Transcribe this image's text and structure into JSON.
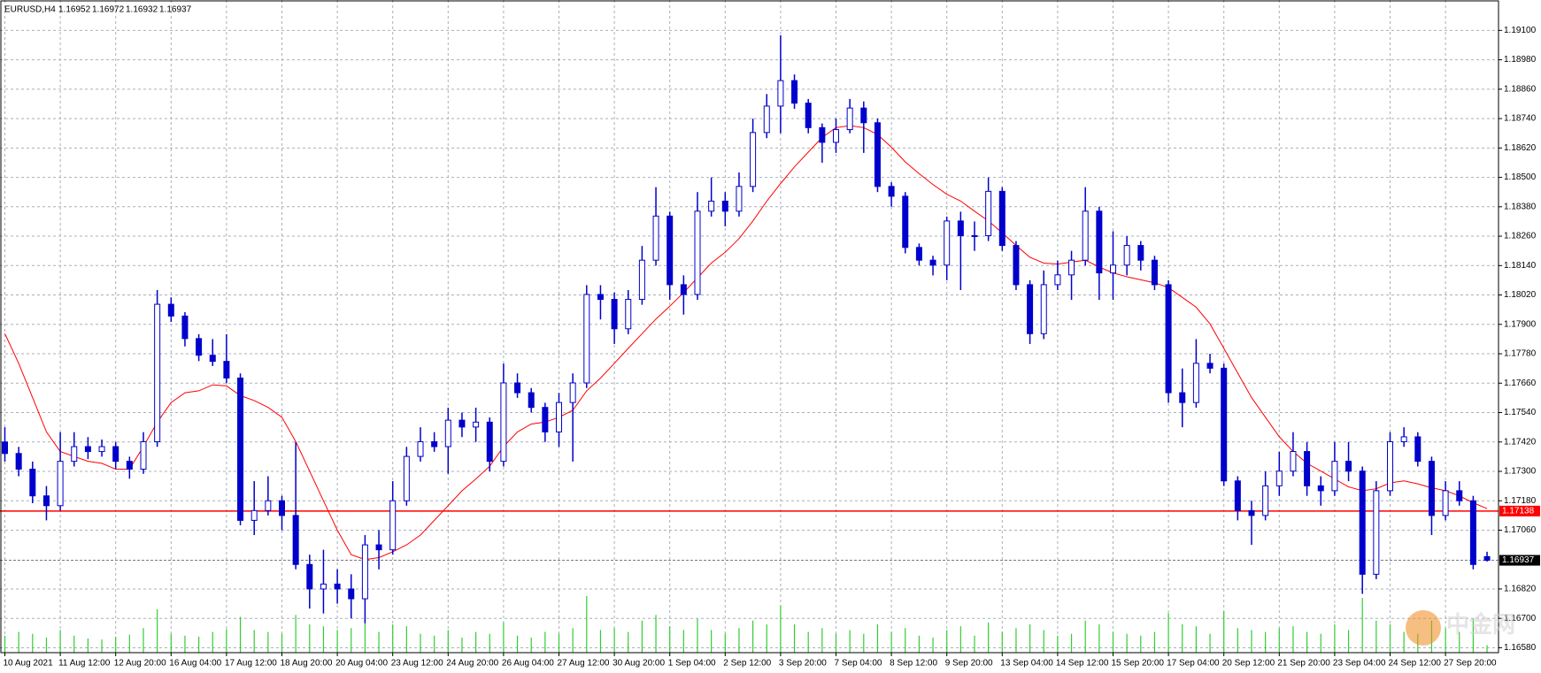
{
  "chart_data": {
    "type": "candlestick",
    "title": "EURUSD,H4",
    "candle_color": "#0000cc",
    "grid": true,
    "categories": [
      "10 Aug 2021",
      null,
      null,
      null,
      "11 Aug 12:00",
      null,
      null,
      null,
      "12 Aug 20:00",
      null,
      null,
      null,
      "16 Aug 04:00",
      null,
      null,
      null,
      "17 Aug 12:00",
      null,
      null,
      null,
      "18 Aug 20:00",
      null,
      null,
      null,
      "20 Aug 04:00",
      null,
      null,
      null,
      "23 Aug 12:00",
      null,
      null,
      null,
      "24 Aug 20:00",
      null,
      null,
      null,
      "26 Aug 04:00",
      null,
      null,
      null,
      "27 Aug 12:00",
      null,
      null,
      null,
      "30 Aug 20:00",
      null,
      null,
      null,
      "1 Sep 04:00",
      null,
      null,
      null,
      "2 Sep 12:00",
      null,
      null,
      null,
      "3 Sep 20:00",
      null,
      null,
      null,
      "7 Sep 04:00",
      null,
      null,
      null,
      "8 Sep 12:00",
      null,
      null,
      null,
      "9 Sep 20:00",
      null,
      null,
      null,
      "13 Sep 04:00",
      null,
      null,
      null,
      "14 Sep 12:00",
      null,
      null,
      null,
      "15 Sep 20:00",
      null,
      null,
      null,
      "17 Sep 04:00",
      null,
      null,
      null,
      "20 Sep 12:00",
      null,
      null,
      null,
      "21 Sep 20:00",
      null,
      null,
      null,
      "23 Sep 04:00",
      null,
      null,
      null,
      "24 Sep 12:00",
      null,
      null,
      null,
      "27 Sep 20:00",
      null,
      null,
      null
    ],
    "open": [
      1.1742,
      1.17373,
      1.17309,
      1.172,
      1.1716,
      1.17341,
      1.17401,
      1.17381,
      1.17401,
      1.17341,
      1.17309,
      1.17421,
      1.17982,
      1.17934,
      1.17842,
      1.17774,
      1.17749,
      1.17681,
      1.171,
      1.1714,
      1.1718,
      1.1712,
      1.1692,
      1.1682,
      1.1684,
      1.1682,
      1.1678,
      1.17,
      1.1698,
      1.1718,
      1.17361,
      1.17421,
      1.17401,
      1.17509,
      1.17481,
      1.17501,
      1.17341,
      1.17661,
      1.17621,
      1.17561,
      1.17461,
      1.17581,
      1.17661,
      1.18022,
      1.18002,
      1.17882,
      1.18002,
      1.18162,
      1.18342,
      1.18062,
      1.18022,
      1.18362,
      1.18403,
      1.18362,
      1.18463,
      1.18683,
      1.18791,
      1.18895,
      1.18803,
      1.18703,
      1.18643,
      1.18695,
      1.18783,
      1.18723,
      1.18463,
      1.18423,
      1.18214,
      1.18162,
      1.18142,
      1.18322,
      1.18262,
      1.18262,
      1.18443,
      1.18222,
      1.18062,
      1.17862,
      1.18062,
      1.18102,
      1.18162,
      1.18362,
      1.1811,
      1.18142,
      1.18222,
      1.18162,
      1.18062,
      1.17621,
      1.17581,
      1.17741,
      1.17721,
      1.17261,
      1.1714,
      1.1712,
      1.17241,
      1.17301,
      1.17381,
      1.17241,
      1.17221,
      1.17341,
      1.17301,
      1.1688,
      1.17221,
      1.17421,
      1.17441,
      1.17341,
      1.1712,
      1.17221,
      1.1718,
      1.16952
    ],
    "high": [
      1.1748,
      1.174,
      1.1734,
      1.1724,
      1.1746,
      1.1746,
      1.1744,
      1.1743,
      1.1742,
      1.1736,
      1.1746,
      1.1804,
      1.1801,
      1.1795,
      1.1786,
      1.1784,
      1.1786,
      1.177,
      1.1726,
      1.1728,
      1.172,
      1.1742,
      1.1696,
      1.1698,
      1.169,
      1.1688,
      1.1704,
      1.1706,
      1.1726,
      1.174,
      1.1748,
      1.1746,
      1.1756,
      1.1754,
      1.1756,
      1.1752,
      1.1774,
      1.177,
      1.1764,
      1.1758,
      1.1762,
      1.177,
      1.1806,
      1.1806,
      1.1803,
      1.1804,
      1.1822,
      1.1846,
      1.1836,
      1.181,
      1.1844,
      1.185,
      1.1844,
      1.1852,
      1.1874,
      1.1884,
      1.1908,
      1.1892,
      1.1882,
      1.1872,
      1.1874,
      1.1882,
      1.1881,
      1.1874,
      1.1848,
      1.1844,
      1.1823,
      1.1818,
      1.1834,
      1.1836,
      1.1832,
      1.185,
      1.1846,
      1.1824,
      1.1808,
      1.1812,
      1.1816,
      1.182,
      1.1846,
      1.1838,
      1.1828,
      1.1826,
      1.1824,
      1.1818,
      1.1808,
      1.1772,
      1.1784,
      1.1778,
      1.1774,
      1.1728,
      1.1718,
      1.173,
      1.1738,
      1.1746,
      1.1742,
      1.1728,
      1.1742,
      1.1742,
      1.1732,
      1.1726,
      1.1746,
      1.1748,
      1.1746,
      1.1736,
      1.1726,
      1.1726,
      1.172,
      1.16972
    ],
    "low": [
      1.1734,
      1.1728,
      1.1717,
      1.171,
      1.1714,
      1.1732,
      1.1735,
      1.1736,
      1.1731,
      1.1727,
      1.1729,
      1.174,
      1.1791,
      1.1781,
      1.1775,
      1.1773,
      1.1766,
      1.1708,
      1.1704,
      1.1712,
      1.1706,
      1.169,
      1.1674,
      1.1672,
      1.1676,
      1.167,
      1.1668,
      1.169,
      1.1696,
      1.1716,
      1.1734,
      1.1738,
      1.1729,
      1.1744,
      1.1742,
      1.173,
      1.1732,
      1.176,
      1.1754,
      1.1742,
      1.174,
      1.1734,
      1.1764,
      1.1792,
      1.1782,
      1.1786,
      1.1798,
      1.1814,
      1.18,
      1.1794,
      1.18,
      1.1834,
      1.183,
      1.1834,
      1.1844,
      1.1866,
      1.1868,
      1.1878,
      1.1868,
      1.1856,
      1.186,
      1.1868,
      1.186,
      1.1844,
      1.1838,
      1.1819,
      1.1814,
      1.181,
      1.1808,
      1.1804,
      1.182,
      1.1824,
      1.182,
      1.1804,
      1.1782,
      1.1784,
      1.1804,
      1.18,
      1.1814,
      1.18,
      1.18,
      1.181,
      1.1812,
      1.1804,
      1.1758,
      1.1748,
      1.1756,
      1.177,
      1.1724,
      1.171,
      1.17,
      1.171,
      1.172,
      1.1728,
      1.172,
      1.1716,
      1.172,
      1.1726,
      1.168,
      1.1686,
      1.172,
      1.174,
      1.1732,
      1.1704,
      1.171,
      1.1716,
      1.169,
      1.16932
    ],
    "close": [
      1.17373,
      1.17309,
      1.172,
      1.1716,
      1.17341,
      1.17401,
      1.17381,
      1.17401,
      1.17341,
      1.17309,
      1.17421,
      1.17982,
      1.17934,
      1.17842,
      1.17774,
      1.17749,
      1.17681,
      1.171,
      1.1714,
      1.1718,
      1.1712,
      1.1692,
      1.1682,
      1.1684,
      1.1682,
      1.1678,
      1.17,
      1.1698,
      1.1718,
      1.17361,
      1.17421,
      1.17401,
      1.17509,
      1.17481,
      1.17501,
      1.17341,
      1.17661,
      1.17621,
      1.17561,
      1.17461,
      1.17581,
      1.17661,
      1.18022,
      1.18002,
      1.17882,
      1.18002,
      1.18162,
      1.18342,
      1.18062,
      1.18022,
      1.18362,
      1.18403,
      1.18362,
      1.18463,
      1.18683,
      1.18791,
      1.18895,
      1.18803,
      1.18703,
      1.18643,
      1.18695,
      1.18783,
      1.18723,
      1.18463,
      1.18423,
      1.18214,
      1.18162,
      1.18142,
      1.18322,
      1.18262,
      1.18262,
      1.18443,
      1.18222,
      1.18062,
      1.17862,
      1.18062,
      1.18102,
      1.18162,
      1.18362,
      1.1811,
      1.18142,
      1.18222,
      1.18162,
      1.18062,
      1.17621,
      1.17581,
      1.17741,
      1.17721,
      1.17261,
      1.1714,
      1.1712,
      1.17241,
      1.17301,
      1.17381,
      1.17241,
      1.17221,
      1.17341,
      1.17301,
      1.1688,
      1.17221,
      1.17421,
      1.17441,
      1.17341,
      1.1712,
      1.17221,
      1.1718,
      1.1692,
      1.16937
    ],
    "ma": {
      "color": "#ff0000",
      "values": [
        1.17862,
        1.17741,
        1.17601,
        1.17461,
        1.17381,
        1.17361,
        1.17341,
        1.17333,
        1.17309,
        1.17309,
        1.17401,
        1.17501,
        1.17581,
        1.17621,
        1.17629,
        1.17653,
        1.17649,
        1.17609,
        1.17589,
        1.17561,
        1.17521,
        1.17421,
        1.17301,
        1.1718,
        1.1706,
        1.1696,
        1.1694,
        1.16948,
        1.16972,
        1.17,
        1.1704,
        1.171,
        1.1716,
        1.17221,
        1.17269,
        1.17321,
        1.17401,
        1.17461,
        1.17493,
        1.17501,
        1.17521,
        1.17549,
        1.17629,
        1.17681,
        1.17741,
        1.17802,
        1.17862,
        1.17922,
        1.17974,
        1.1803,
        1.1809,
        1.1815,
        1.18194,
        1.1825,
        1.18322,
        1.18403,
        1.18475,
        1.18543,
        1.18603,
        1.18663,
        1.18703,
        1.18711,
        1.18703,
        1.18675,
        1.18623,
        1.18563,
        1.18515,
        1.18471,
        1.18431,
        1.18403,
        1.18362,
        1.18322,
        1.18274,
        1.18222,
        1.18174,
        1.1815,
        1.18146,
        1.18154,
        1.18162,
        1.18134,
        1.1811,
        1.18094,
        1.18082,
        1.1807,
        1.1805,
        1.1801,
        1.1797,
        1.17902,
        1.17802,
        1.17701,
        1.17601,
        1.17521,
        1.17441,
        1.17381,
        1.17333,
        1.17301,
        1.17269,
        1.17237,
        1.17221,
        1.17229,
        1.17253,
        1.17261,
        1.17249,
        1.17233,
        1.17221,
        1.172,
        1.17172,
        1.17148
      ]
    },
    "volume": {
      "color": "#32cd32",
      "values": [
        18000,
        22000,
        20000,
        16000,
        24000,
        18000,
        15000,
        14000,
        17000,
        19000,
        26000,
        46000,
        20000,
        18000,
        17000,
        22000,
        25000,
        38000,
        24000,
        22000,
        20000,
        40000,
        30000,
        28000,
        24000,
        26000,
        36000,
        22000,
        30000,
        28000,
        20000,
        18000,
        24000,
        16000,
        22000,
        20000,
        32000,
        18000,
        16000,
        22000,
        20000,
        26000,
        60000,
        24000,
        26000,
        22000,
        34000,
        40000,
        28000,
        24000,
        36000,
        24000,
        20000,
        26000,
        34000,
        30000,
        50000,
        30000,
        22000,
        26000,
        20000,
        24000,
        20000,
        30000,
        22000,
        26000,
        18000,
        16000,
        24000,
        28000,
        18000,
        32000,
        22000,
        26000,
        30000,
        24000,
        18000,
        20000,
        34000,
        30000,
        22000,
        20000,
        18000,
        22000,
        42000,
        30000,
        28000,
        20000,
        44000,
        26000,
        24000,
        22000,
        26000,
        28000,
        22000,
        20000,
        30000,
        24000,
        58000,
        34000,
        30000,
        22000,
        20000,
        34000,
        26000,
        22000,
        36000,
        8000
      ]
    },
    "level": {
      "value": 1.17138,
      "color": "#ff0000"
    },
    "ylim": [
      1.1656,
      1.19224
    ],
    "yticks": [
      {
        "value": 1.191,
        "label": "1.19100"
      },
      {
        "value": 1.1898,
        "label": "1.18980"
      },
      {
        "value": 1.1886,
        "label": "1.18860"
      },
      {
        "value": 1.1874,
        "label": "1.18740"
      },
      {
        "value": 1.1862,
        "label": "1.18620"
      },
      {
        "value": 1.185,
        "label": "1.18500"
      },
      {
        "value": 1.1838,
        "label": "1.18380"
      },
      {
        "value": 1.1826,
        "label": "1.18260"
      },
      {
        "value": 1.1814,
        "label": "1.18140"
      },
      {
        "value": 1.1802,
        "label": "1.18020"
      },
      {
        "value": 1.179,
        "label": "1.17900"
      },
      {
        "value": 1.1778,
        "label": "1.17780"
      },
      {
        "value": 1.1766,
        "label": "1.17660"
      },
      {
        "value": 1.1754,
        "label": "1.17540"
      },
      {
        "value": 1.1742,
        "label": "1.17420"
      },
      {
        "value": 1.173,
        "label": "1.17300"
      },
      {
        "value": 1.1718,
        "label": "1.17180"
      },
      {
        "value": 1.1706,
        "label": "1.17060"
      },
      {
        "value": 1.1682,
        "label": "1.16820"
      },
      {
        "value": 1.167,
        "label": "1.16700"
      },
      {
        "value": 1.1658,
        "label": "1.16580"
      }
    ],
    "watermark": "中金网"
  }
}
